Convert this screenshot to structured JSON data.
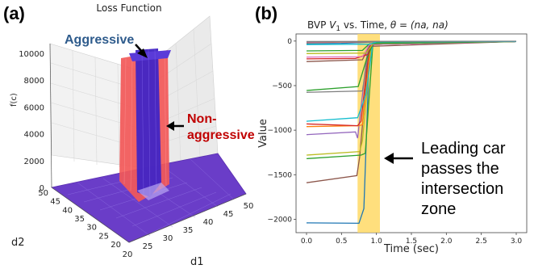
{
  "panels": {
    "a": "(a)",
    "b": "(b)"
  },
  "chart_data": [
    {
      "type": "surface3d",
      "title": "Loss Function",
      "xlabel": "d1",
      "ylabel": "d2",
      "zlabel": "f(c)",
      "x_ticks": [
        "20",
        "25",
        "30",
        "35",
        "40",
        "45",
        "50"
      ],
      "y_ticks": [
        "50",
        "45",
        "40",
        "35",
        "30",
        "25",
        "20"
      ],
      "z_ticks": [
        "0",
        "2000",
        "4000",
        "6000",
        "8000",
        "10000"
      ],
      "xlim": [
        20,
        50
      ],
      "ylim": [
        20,
        50
      ],
      "zlim": [
        0,
        10000
      ],
      "series": [
        {
          "name": "Aggressive",
          "color": "#3d1ab0",
          "peak": 10000
        },
        {
          "name": "Non-aggressive",
          "color": "#f03a3a",
          "peak": 10000
        }
      ],
      "annotations": {
        "aggressive": "Aggressive",
        "non_aggressive_1": "Non-",
        "non_aggressive_2": "aggressive"
      }
    },
    {
      "type": "line",
      "title_prefix": "BVP ",
      "title_var": "V",
      "title_sub": "1",
      "title_mid": " vs. Time, ",
      "title_theta": "θ",
      "title_suffix": " = (na, na)",
      "xlabel": "Time (sec)",
      "ylabel": "Value",
      "xlim": [
        -0.15,
        3.15
      ],
      "ylim": [
        -2150,
        80
      ],
      "x_ticks": [
        0.0,
        0.5,
        1.0,
        1.5,
        2.0,
        2.5,
        3.0
      ],
      "x_tick_labels": [
        "0.0",
        "0.5",
        "1.0",
        "1.5",
        "2.0",
        "2.5",
        "3.0"
      ],
      "y_ticks": [
        0,
        -500,
        -1000,
        -1500,
        -2000
      ],
      "y_tick_labels": [
        "0",
        "−500",
        "−1000",
        "−1500",
        "−2000"
      ],
      "highlight_band": {
        "from": 0.73,
        "to": 1.05,
        "color": "#ffd966"
      },
      "annotation": {
        "line1": "Leading car",
        "line2": "passes the",
        "line3": "intersection",
        "line4": "zone"
      },
      "series": [
        {
          "color": "#1f77b4",
          "points": [
            [
              0,
              -2040
            ],
            [
              0.75,
              -2045
            ],
            [
              0.82,
              -1880
            ],
            [
              0.9,
              -100
            ],
            [
              1.0,
              -8
            ],
            [
              3.0,
              -5
            ]
          ]
        },
        {
          "color": "#8c564b",
          "points": [
            [
              0,
              -1590
            ],
            [
              0.72,
              -1510
            ],
            [
              0.76,
              -1300
            ],
            [
              0.9,
              -40
            ],
            [
              3.0,
              -5
            ]
          ]
        },
        {
          "color": "#2ca02c",
          "points": [
            [
              0,
              -1320
            ],
            [
              0.78,
              -1280
            ],
            [
              0.84,
              -1260
            ],
            [
              0.95,
              -30
            ],
            [
              3.0,
              -5
            ]
          ]
        },
        {
          "color": "#bcbd22",
          "points": [
            [
              0,
              -1280
            ],
            [
              0.76,
              -1240
            ],
            [
              0.8,
              -1120
            ],
            [
              0.93,
              -30
            ],
            [
              3.0,
              -5
            ]
          ]
        },
        {
          "color": "#9467bd",
          "points": [
            [
              0,
              -1050
            ],
            [
              0.7,
              -1020
            ],
            [
              0.73,
              -1090
            ],
            [
              0.88,
              -40
            ],
            [
              3.0,
              -5
            ]
          ]
        },
        {
          "color": "#ff7f0e",
          "points": [
            [
              0,
              -960
            ],
            [
              0.74,
              -950
            ],
            [
              0.8,
              -940
            ],
            [
              0.92,
              -30
            ],
            [
              3.0,
              -5
            ]
          ]
        },
        {
          "color": "#d62728",
          "points": [
            [
              0,
              -930
            ],
            [
              0.73,
              -950
            ],
            [
              0.78,
              -900
            ],
            [
              0.9,
              -40
            ],
            [
              3.0,
              -5
            ]
          ]
        },
        {
          "color": "#17becf",
          "points": [
            [
              0,
              -900
            ],
            [
              0.73,
              -860
            ],
            [
              0.85,
              -600
            ],
            [
              0.95,
              -20
            ],
            [
              3.0,
              -5
            ]
          ]
        },
        {
          "color": "#7f7f7f",
          "points": [
            [
              0,
              -575
            ],
            [
              0.8,
              -560
            ],
            [
              0.9,
              -40
            ],
            [
              3.0,
              -5
            ]
          ]
        },
        {
          "color": "#2ca02c",
          "points": [
            [
              0,
              -555
            ],
            [
              0.74,
              -510
            ],
            [
              0.86,
              -200
            ],
            [
              0.96,
              -15
            ],
            [
              3.0,
              -5
            ]
          ]
        },
        {
          "color": "#8c564b",
          "points": [
            [
              0,
              -230
            ],
            [
              0.8,
              -210
            ],
            [
              0.9,
              -60
            ],
            [
              3.0,
              -5
            ]
          ]
        },
        {
          "color": "#d62728",
          "points": [
            [
              0,
              -200
            ],
            [
              0.7,
              -195
            ],
            [
              0.88,
              -150
            ],
            [
              0.92,
              -30
            ],
            [
              3.0,
              -5
            ]
          ]
        },
        {
          "color": "#e377c2",
          "points": [
            [
              0,
              -180
            ],
            [
              0.8,
              -175
            ],
            [
              0.9,
              -40
            ],
            [
              3.0,
              -5
            ]
          ]
        },
        {
          "color": "#bcbd22",
          "points": [
            [
              0,
              -140
            ],
            [
              0.85,
              -135
            ],
            [
              0.95,
              -30
            ],
            [
              3.0,
              -5
            ]
          ]
        },
        {
          "color": "#2ca02c",
          "points": [
            [
              0,
              -110
            ],
            [
              0.8,
              -105
            ],
            [
              0.9,
              -30
            ],
            [
              3.0,
              -5
            ]
          ]
        },
        {
          "color": "#1f77b4",
          "points": [
            [
              0,
              -30
            ],
            [
              0.5,
              -25
            ],
            [
              1.0,
              -10
            ],
            [
              3.0,
              -5
            ]
          ]
        },
        {
          "color": "#ff7f0e",
          "points": [
            [
              0,
              -18
            ],
            [
              1.0,
              -8
            ],
            [
              3.0,
              -4
            ]
          ]
        },
        {
          "color": "#9467bd",
          "points": [
            [
              0,
              -12
            ],
            [
              1.0,
              -6
            ],
            [
              3.0,
              -3
            ]
          ]
        },
        {
          "color": "#17becf",
          "points": [
            [
              0,
              -40
            ],
            [
              0.9,
              -35
            ],
            [
              1.0,
              -10
            ],
            [
              3.0,
              -5
            ]
          ]
        },
        {
          "color": "#7f7f7f",
          "points": [
            [
              0,
              -5
            ],
            [
              3.0,
              -2
            ]
          ]
        }
      ]
    }
  ]
}
